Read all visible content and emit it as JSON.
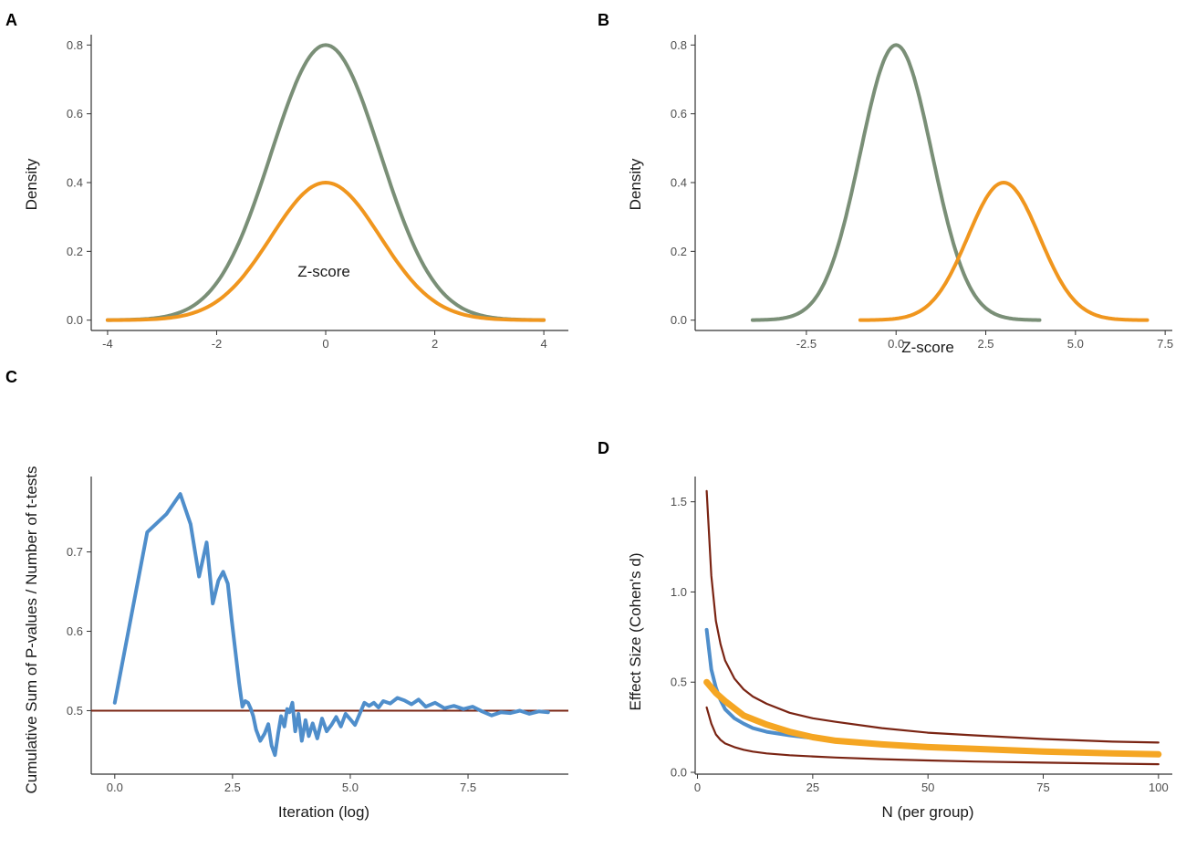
{
  "chart_data": [
    {
      "panel": "A",
      "type": "line",
      "xlabel": "Z-score",
      "ylabel": "Density",
      "xlim": [
        -4.3,
        4.45
      ],
      "ylim": [
        -0.03,
        0.83
      ],
      "x_ticks": [
        -4,
        -2,
        0,
        2,
        4
      ],
      "x_tick_labels": [
        "-4",
        "-2",
        "0",
        "2",
        "4"
      ],
      "y_ticks": [
        0,
        0.2,
        0.4,
        0.6,
        0.8
      ],
      "y_tick_labels": [
        "0.0",
        "0.2",
        "0.4",
        "0.6",
        "0.8"
      ],
      "series": [
        {
          "name": "green-density",
          "kind": "normal",
          "mean": 0,
          "sd": 1,
          "peak": 0.8,
          "from": -4,
          "to": 4,
          "color": "#7a8f77"
        },
        {
          "name": "orange-density",
          "kind": "normal",
          "mean": 0,
          "sd": 1,
          "peak": 0.4,
          "from": -4,
          "to": 4,
          "color": "#f0961e"
        }
      ]
    },
    {
      "panel": "B",
      "type": "line",
      "xlabel": "Z-score",
      "ylabel": "Density",
      "xlim": [
        -5.6,
        7.7
      ],
      "ylim": [
        -0.03,
        0.83
      ],
      "x_ticks": [
        -2.5,
        0,
        2.5,
        5,
        7.5
      ],
      "x_tick_labels": [
        "-2.5",
        "0.0",
        "2.5",
        "5.0",
        "7.5"
      ],
      "y_ticks": [
        0,
        0.2,
        0.4,
        0.6,
        0.8
      ],
      "y_tick_labels": [
        "0.0",
        "0.2",
        "0.4",
        "0.6",
        "0.8"
      ],
      "series": [
        {
          "name": "green-density",
          "kind": "normal",
          "mean": 0,
          "sd": 1,
          "peak": 0.8,
          "from": -4,
          "to": 4,
          "color": "#7a8f77"
        },
        {
          "name": "orange-density",
          "kind": "normal",
          "mean": 3,
          "sd": 1,
          "peak": 0.4,
          "from": -1,
          "to": 7,
          "color": "#f0961e"
        }
      ]
    },
    {
      "panel": "C",
      "type": "line",
      "xlabel": "Iteration (log)",
      "ylabel": "Cumulative Sum of P-values / Number of t-tests",
      "xlim": [
        -0.5,
        9.63
      ],
      "ylim": [
        0.42,
        0.795
      ],
      "x_ticks": [
        0,
        2.5,
        5,
        7.5
      ],
      "x_tick_labels": [
        "0.0",
        "2.5",
        "5.0",
        "7.5"
      ],
      "y_ticks": [
        0.5,
        0.6,
        0.7
      ],
      "y_tick_labels": [
        "0.5",
        "0.6",
        "0.7"
      ],
      "hline": {
        "y": 0.5,
        "color": "#7a2413"
      },
      "series": [
        {
          "name": "cumulative-p",
          "color": "#4f8ecb",
          "x": [
            0.0,
            0.69,
            1.1,
            1.39,
            1.61,
            1.79,
            1.95,
            2.08,
            2.2,
            2.3,
            2.4,
            2.48,
            2.56,
            2.64,
            2.71,
            2.77,
            2.83,
            2.89,
            2.94,
            3.0,
            3.09,
            3.18,
            3.26,
            3.33,
            3.4,
            3.47,
            3.53,
            3.6,
            3.66,
            3.71,
            3.77,
            3.83,
            3.9,
            3.97,
            4.05,
            4.12,
            4.2,
            4.3,
            4.4,
            4.5,
            4.6,
            4.7,
            4.8,
            4.9,
            5.0,
            5.1,
            5.2,
            5.3,
            5.4,
            5.5,
            5.6,
            5.7,
            5.85,
            6.0,
            6.15,
            6.3,
            6.45,
            6.6,
            6.8,
            7.0,
            7.2,
            7.4,
            7.6,
            7.8,
            8.0,
            8.2,
            8.4,
            8.6,
            8.8,
            9.0,
            9.2
          ],
          "y": [
            0.51,
            0.725,
            0.748,
            0.773,
            0.735,
            0.669,
            0.712,
            0.635,
            0.664,
            0.675,
            0.66,
            0.615,
            0.575,
            0.535,
            0.505,
            0.512,
            0.51,
            0.502,
            0.493,
            0.476,
            0.462,
            0.471,
            0.483,
            0.456,
            0.444,
            0.472,
            0.493,
            0.48,
            0.502,
            0.498,
            0.51,
            0.474,
            0.496,
            0.462,
            0.488,
            0.468,
            0.484,
            0.465,
            0.49,
            0.474,
            0.482,
            0.492,
            0.48,
            0.496,
            0.489,
            0.482,
            0.496,
            0.51,
            0.506,
            0.51,
            0.504,
            0.512,
            0.509,
            0.516,
            0.513,
            0.508,
            0.514,
            0.505,
            0.51,
            0.503,
            0.506,
            0.502,
            0.505,
            0.499,
            0.494,
            0.498,
            0.497,
            0.5,
            0.496,
            0.499,
            0.498
          ]
        }
      ]
    },
    {
      "panel": "D",
      "type": "line",
      "xlabel": "N (per group)",
      "ylabel": "Effect Size (Cohen's d)",
      "xlim": [
        -0.5,
        103
      ],
      "ylim": [
        -0.01,
        1.64
      ],
      "x_ticks": [
        0,
        25,
        50,
        75,
        100
      ],
      "x_tick_labels": [
        "0",
        "25",
        "50",
        "75",
        "100"
      ],
      "y_ticks": [
        0,
        0.5,
        1.0,
        1.5
      ],
      "y_tick_labels": [
        "0.0",
        "0.5",
        "1.0",
        "1.5"
      ],
      "series": [
        {
          "name": "upper-bound",
          "color": "#7a2413",
          "x": [
            2,
            3,
            4,
            5,
            6,
            8,
            10,
            12,
            15,
            20,
            25,
            30,
            40,
            50,
            60,
            75,
            90,
            100
          ],
          "y": [
            1.56,
            1.09,
            0.84,
            0.71,
            0.62,
            0.52,
            0.46,
            0.42,
            0.38,
            0.33,
            0.3,
            0.28,
            0.245,
            0.22,
            0.205,
            0.185,
            0.17,
            0.165
          ]
        },
        {
          "name": "lower-bound",
          "color": "#7a2413",
          "x": [
            2,
            3,
            4,
            5,
            6,
            8,
            10,
            12,
            15,
            20,
            25,
            30,
            40,
            50,
            60,
            75,
            90,
            100
          ],
          "y": [
            0.36,
            0.27,
            0.21,
            0.18,
            0.16,
            0.14,
            0.125,
            0.115,
            0.105,
            0.095,
            0.088,
            0.082,
            0.073,
            0.066,
            0.06,
            0.054,
            0.048,
            0.045
          ]
        },
        {
          "name": "observed-effect",
          "color": "#4f8ecb",
          "x": [
            2,
            3,
            4,
            5,
            6,
            8,
            10,
            12,
            15,
            20,
            25,
            28
          ],
          "y": [
            0.79,
            0.57,
            0.47,
            0.4,
            0.35,
            0.3,
            0.27,
            0.245,
            0.225,
            0.205,
            0.19,
            0.18
          ]
        },
        {
          "name": "expected-effect",
          "color": "#f5a623",
          "x": [
            2,
            4,
            6,
            8,
            10,
            15,
            20,
            25,
            30,
            40,
            50,
            60,
            75,
            90,
            100
          ],
          "y": [
            0.5,
            0.44,
            0.395,
            0.355,
            0.315,
            0.265,
            0.225,
            0.195,
            0.175,
            0.155,
            0.14,
            0.13,
            0.115,
            0.105,
            0.1
          ]
        }
      ]
    }
  ]
}
